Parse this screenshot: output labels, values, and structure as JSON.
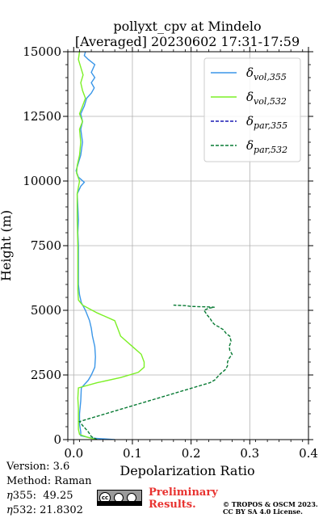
{
  "chart_data": {
    "type": "line",
    "title_line1": "pollyxt_cpv at Mindelo",
    "title_line2": "[Averaged] 20230602 17:31-17:59",
    "xlabel": "Depolarization Ratio",
    "ylabel": "Height (m)",
    "xlim": [
      -0.01,
      0.4
    ],
    "ylim": [
      0,
      15000
    ],
    "xticks": [
      "0.0",
      "0.1",
      "0.2",
      "0.3",
      "0.4"
    ],
    "xtick_values": [
      0,
      0.1,
      0.2,
      0.3,
      0.4
    ],
    "yticks": [
      "0",
      "2500",
      "5000",
      "7500",
      "10000",
      "12500",
      "15000"
    ],
    "ytick_values": [
      0,
      2500,
      5000,
      7500,
      10000,
      12500,
      15000
    ],
    "grid": true,
    "legend_placement": "top-right",
    "series": [
      {
        "name": "δvol,355",
        "sym": "δ",
        "sub": "vol,355",
        "color": "#3a96e8",
        "style": "solid",
        "points": [
          [
            0.07,
            0
          ],
          [
            0.03,
            60
          ],
          [
            0.012,
            150
          ],
          [
            0.012,
            300
          ],
          [
            0.01,
            600
          ],
          [
            0.01,
            1000
          ],
          [
            0.012,
            1500
          ],
          [
            0.013,
            2000
          ],
          [
            0.025,
            2300
          ],
          [
            0.03,
            2500
          ],
          [
            0.036,
            2800
          ],
          [
            0.037,
            3200
          ],
          [
            0.036,
            3600
          ],
          [
            0.032,
            4000
          ],
          [
            0.03,
            4300
          ],
          [
            0.027,
            4600
          ],
          [
            0.02,
            5000
          ],
          [
            0.013,
            5300
          ],
          [
            0.01,
            5600
          ],
          [
            0.008,
            6000
          ],
          [
            0.008,
            6500
          ],
          [
            0.008,
            7000
          ],
          [
            0.008,
            7500
          ],
          [
            0.007,
            8000
          ],
          [
            0.008,
            8500
          ],
          [
            0.007,
            9000
          ],
          [
            0.006,
            9500
          ],
          [
            0.012,
            9800
          ],
          [
            0.018,
            9950
          ],
          [
            0.008,
            10150
          ],
          [
            0.004,
            10400
          ],
          [
            0.008,
            10700
          ],
          [
            0.012,
            11000
          ],
          [
            0.015,
            11500
          ],
          [
            0.012,
            12000
          ],
          [
            0.015,
            12300
          ],
          [
            0.012,
            12600
          ],
          [
            0.018,
            12900
          ],
          [
            0.022,
            13200
          ],
          [
            0.03,
            13400
          ],
          [
            0.035,
            13600
          ],
          [
            0.03,
            13800
          ],
          [
            0.036,
            14000
          ],
          [
            0.03,
            14200
          ],
          [
            0.036,
            14500
          ],
          [
            0.025,
            14700
          ],
          [
            0.018,
            14850
          ],
          [
            0.02,
            15000
          ]
        ]
      },
      {
        "name": "δvol,532",
        "sym": "δ",
        "sub": "vol,532",
        "color": "#7cf026",
        "style": "solid",
        "points": [
          [
            0.04,
            0
          ],
          [
            0.025,
            80
          ],
          [
            0.01,
            200
          ],
          [
            0.008,
            400
          ],
          [
            0.008,
            800
          ],
          [
            0.008,
            1200
          ],
          [
            0.007,
            1600
          ],
          [
            0.008,
            2000
          ],
          [
            0.04,
            2200
          ],
          [
            0.08,
            2400
          ],
          [
            0.11,
            2600
          ],
          [
            0.12,
            2800
          ],
          [
            0.12,
            3000
          ],
          [
            0.115,
            3300
          ],
          [
            0.1,
            3600
          ],
          [
            0.08,
            4000
          ],
          [
            0.075,
            4300
          ],
          [
            0.07,
            4600
          ],
          [
            0.04,
            4900
          ],
          [
            0.015,
            5200
          ],
          [
            0.008,
            5400
          ],
          [
            0.007,
            5800
          ],
          [
            0.007,
            6500
          ],
          [
            0.007,
            7500
          ],
          [
            0.006,
            8500
          ],
          [
            0.006,
            9500
          ],
          [
            0.01,
            10000
          ],
          [
            0.005,
            10300
          ],
          [
            0.006,
            10600
          ],
          [
            0.01,
            11000
          ],
          [
            0.012,
            11500
          ],
          [
            0.01,
            12000
          ],
          [
            0.015,
            12300
          ],
          [
            0.01,
            12600
          ],
          [
            0.015,
            12900
          ],
          [
            0.02,
            13200
          ],
          [
            0.015,
            13500
          ],
          [
            0.012,
            13800
          ],
          [
            0.016,
            14100
          ],
          [
            0.012,
            14400
          ],
          [
            0.008,
            14700
          ],
          [
            0.01,
            15000
          ]
        ]
      },
      {
        "name": "δpar,355",
        "sym": "δ",
        "sub": "par,355",
        "color": "#1a1ab4",
        "style": "dashed",
        "points": []
      },
      {
        "name": "δpar,532",
        "sym": "δ",
        "sub": "par,532",
        "color": "#077a33",
        "style": "dashed",
        "points": [
          [
            0.04,
            0
          ],
          [
            0.03,
            120
          ],
          [
            0.025,
            300
          ],
          [
            0.015,
            550
          ],
          [
            0.01,
            700
          ],
          [
            0.232,
            2200
          ],
          [
            0.24,
            2300
          ],
          [
            0.244,
            2400
          ],
          [
            0.25,
            2550
          ],
          [
            0.258,
            2700
          ],
          [
            0.262,
            2850
          ],
          [
            0.262,
            3000
          ],
          [
            0.265,
            3150
          ],
          [
            0.27,
            3300
          ],
          [
            0.266,
            3450
          ],
          [
            0.265,
            3600
          ],
          [
            0.268,
            3800
          ],
          [
            0.266,
            4000
          ],
          [
            0.26,
            4100
          ],
          [
            0.255,
            4250
          ],
          [
            0.248,
            4350
          ],
          [
            0.24,
            4450
          ],
          [
            0.236,
            4550
          ],
          [
            0.232,
            4700
          ],
          [
            0.228,
            4800
          ],
          [
            0.225,
            4900
          ],
          [
            0.222,
            5000
          ],
          [
            0.23,
            5080
          ],
          [
            0.24,
            5120
          ],
          [
            0.23,
            5130
          ],
          [
            0.2,
            5150
          ],
          [
            0.19,
            5180
          ],
          [
            0.17,
            5200
          ]
        ]
      }
    ]
  },
  "meta": {
    "version": "Version: 3.6",
    "method": "Method: Raman",
    "eta355_label": "355:",
    "eta355_value": "49.25",
    "eta532_label": "532:",
    "eta532_value": "21.8302",
    "eta_symbol": "η"
  },
  "footer": {
    "preliminary_line1": "Preliminary",
    "preliminary_line2": "Results.",
    "copyright_line1": "© TROPOS & OSCM 2023.",
    "copyright_line2": "CC BY SA 4.0 License.",
    "cc_icon": "cc-by-sa-icon",
    "cc_text": "cc"
  }
}
